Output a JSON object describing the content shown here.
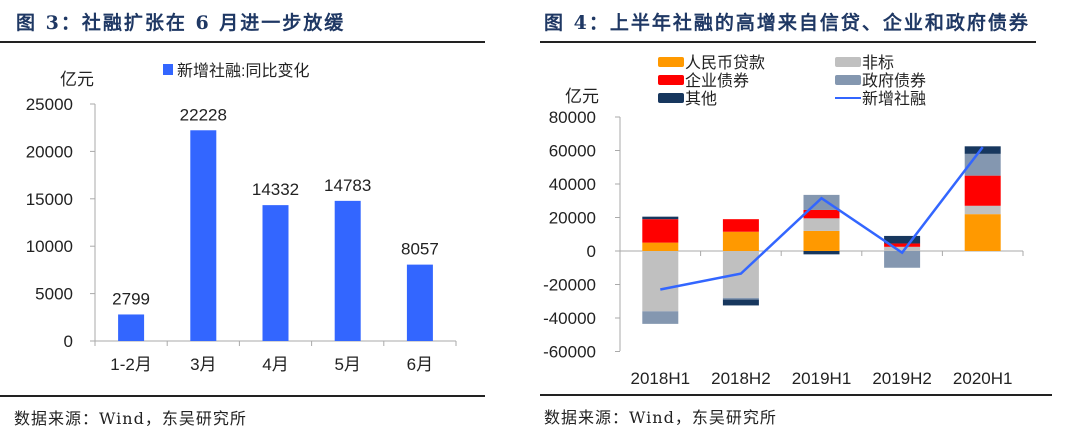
{
  "left": {
    "title": "图 3：社融扩张在 6 月进一步放缓",
    "source": "数据来源：Wind，东吴研究所"
  },
  "right": {
    "title": "图 4：上半年社融的高增来自信贷、企业和政府债券",
    "source": "数据来源：Wind，东吴研究所"
  },
  "colors": {
    "bar_blue": "#3366ff",
    "loan": "#ff9900",
    "nonstandard": "#c0c0c0",
    "corp_bond": "#ff0000",
    "gov_bond": "#8497b0",
    "other": "#17375e",
    "line": "#3366ff",
    "title": "#1f3864"
  },
  "chart_data": [
    {
      "type": "bar",
      "title": "社融扩张在 6 月进一步放缓",
      "ylabel": "亿元",
      "xlabel": "",
      "categories": [
        "1-2月",
        "3月",
        "4月",
        "5月",
        "6月"
      ],
      "series": [
        {
          "name": "新增社融:同比变化",
          "values": [
            2799,
            22228,
            14332,
            14783,
            8057
          ]
        }
      ],
      "data_labels": [
        "2799",
        "22228",
        "14332",
        "14783",
        "8057"
      ],
      "yticks": [
        0,
        5000,
        10000,
        15000,
        20000,
        25000
      ],
      "ylim": [
        0,
        25000
      ],
      "legend_position": "top",
      "grid": false
    },
    {
      "type": "bar",
      "stacked": true,
      "title": "上半年社融的高增来自信贷、企业和政府债券",
      "ylabel": "亿元",
      "xlabel": "",
      "categories": [
        "2018H1",
        "2018H2",
        "2019H1",
        "2019H2",
        "2020H1"
      ],
      "series": [
        {
          "name": "人民币贷款",
          "type": "bar",
          "values": [
            5000,
            11500,
            12000,
            0,
            22000
          ]
        },
        {
          "name": "非标",
          "type": "bar",
          "values": [
            -36000,
            -28000,
            7500,
            2500,
            5000
          ]
        },
        {
          "name": "企业债券",
          "type": "bar",
          "values": [
            14000,
            7500,
            5000,
            2000,
            18000
          ]
        },
        {
          "name": "政府债券",
          "type": "bar",
          "values": [
            -7500,
            -1000,
            9000,
            -10000,
            13000
          ]
        },
        {
          "name": "其他",
          "type": "bar",
          "values": [
            1500,
            -3500,
            -2000,
            4500,
            4500
          ]
        },
        {
          "name": "新增社融",
          "type": "line",
          "values": [
            -23000,
            -13500,
            31500,
            -1000,
            62000
          ]
        }
      ],
      "yticks": [
        -60000,
        -40000,
        -20000,
        0,
        20000,
        40000,
        60000,
        80000
      ],
      "ylim": [
        -60000,
        80000
      ],
      "legend_position": "top",
      "grid": false
    }
  ]
}
